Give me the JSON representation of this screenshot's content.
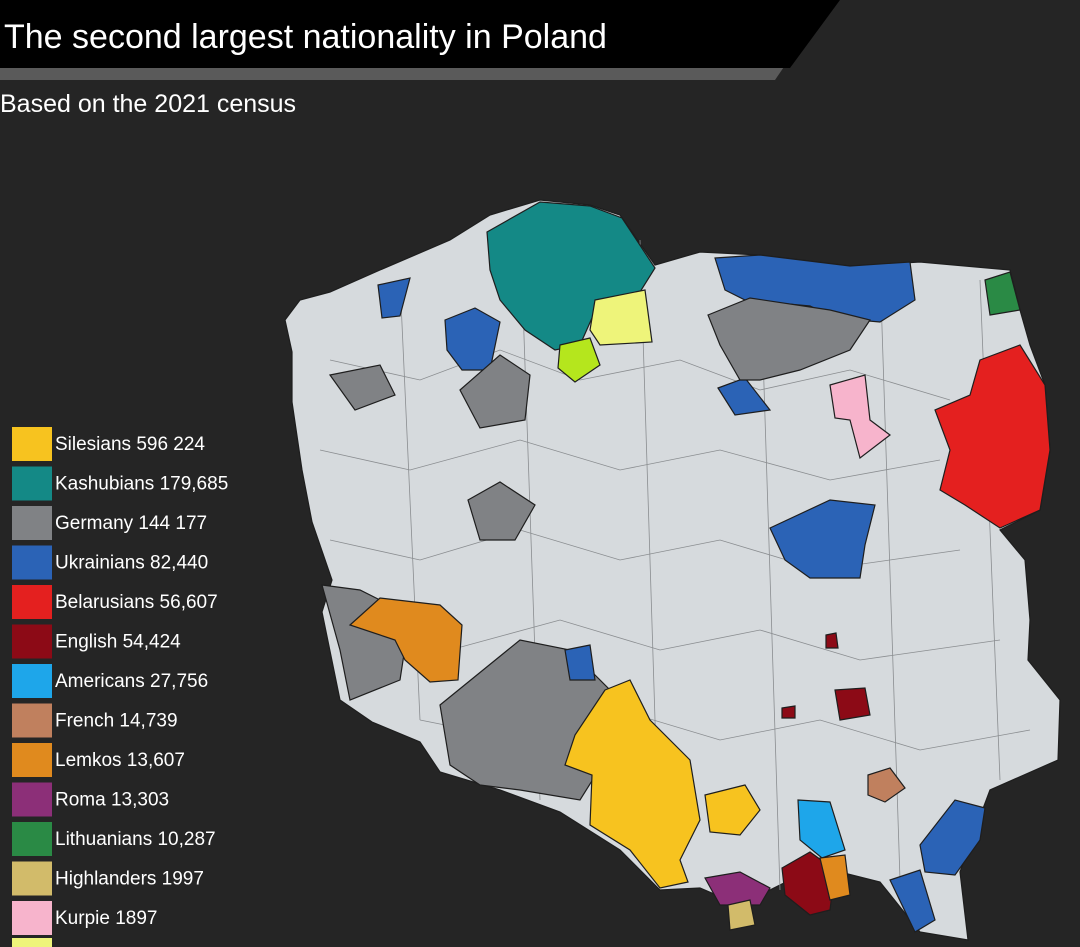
{
  "header": {
    "title": "The second largest nationality in Poland",
    "subtitle": "Based on the 2021 census"
  },
  "legend": {
    "items": [
      {
        "label": "Silesians 596 224",
        "color": "#f7c31f"
      },
      {
        "label": "Kashubians 179,685",
        "color": "#148986"
      },
      {
        "label": "Germany 144 177",
        "color": "#808285"
      },
      {
        "label": "Ukrainians 82,440",
        "color": "#2b63b6"
      },
      {
        "label": "Belarusians 56,607",
        "color": "#e4201f"
      },
      {
        "label": "English 54,424",
        "color": "#8c0a16"
      },
      {
        "label": "Americans 27,756",
        "color": "#1ea6ea"
      },
      {
        "label": "French 14,739",
        "color": "#c0805e"
      },
      {
        "label": "Lemkos 13,607",
        "color": "#e08a1e"
      },
      {
        "label": "Roma 13,303",
        "color": "#8c2f78"
      },
      {
        "label": "Lithuanians 10,287",
        "color": "#2a8a45"
      },
      {
        "label": "Highlanders 1997",
        "color": "#d2bb6a"
      },
      {
        "label": "Kurpie 1897",
        "color": "#f7b4cc"
      }
    ]
  }
}
